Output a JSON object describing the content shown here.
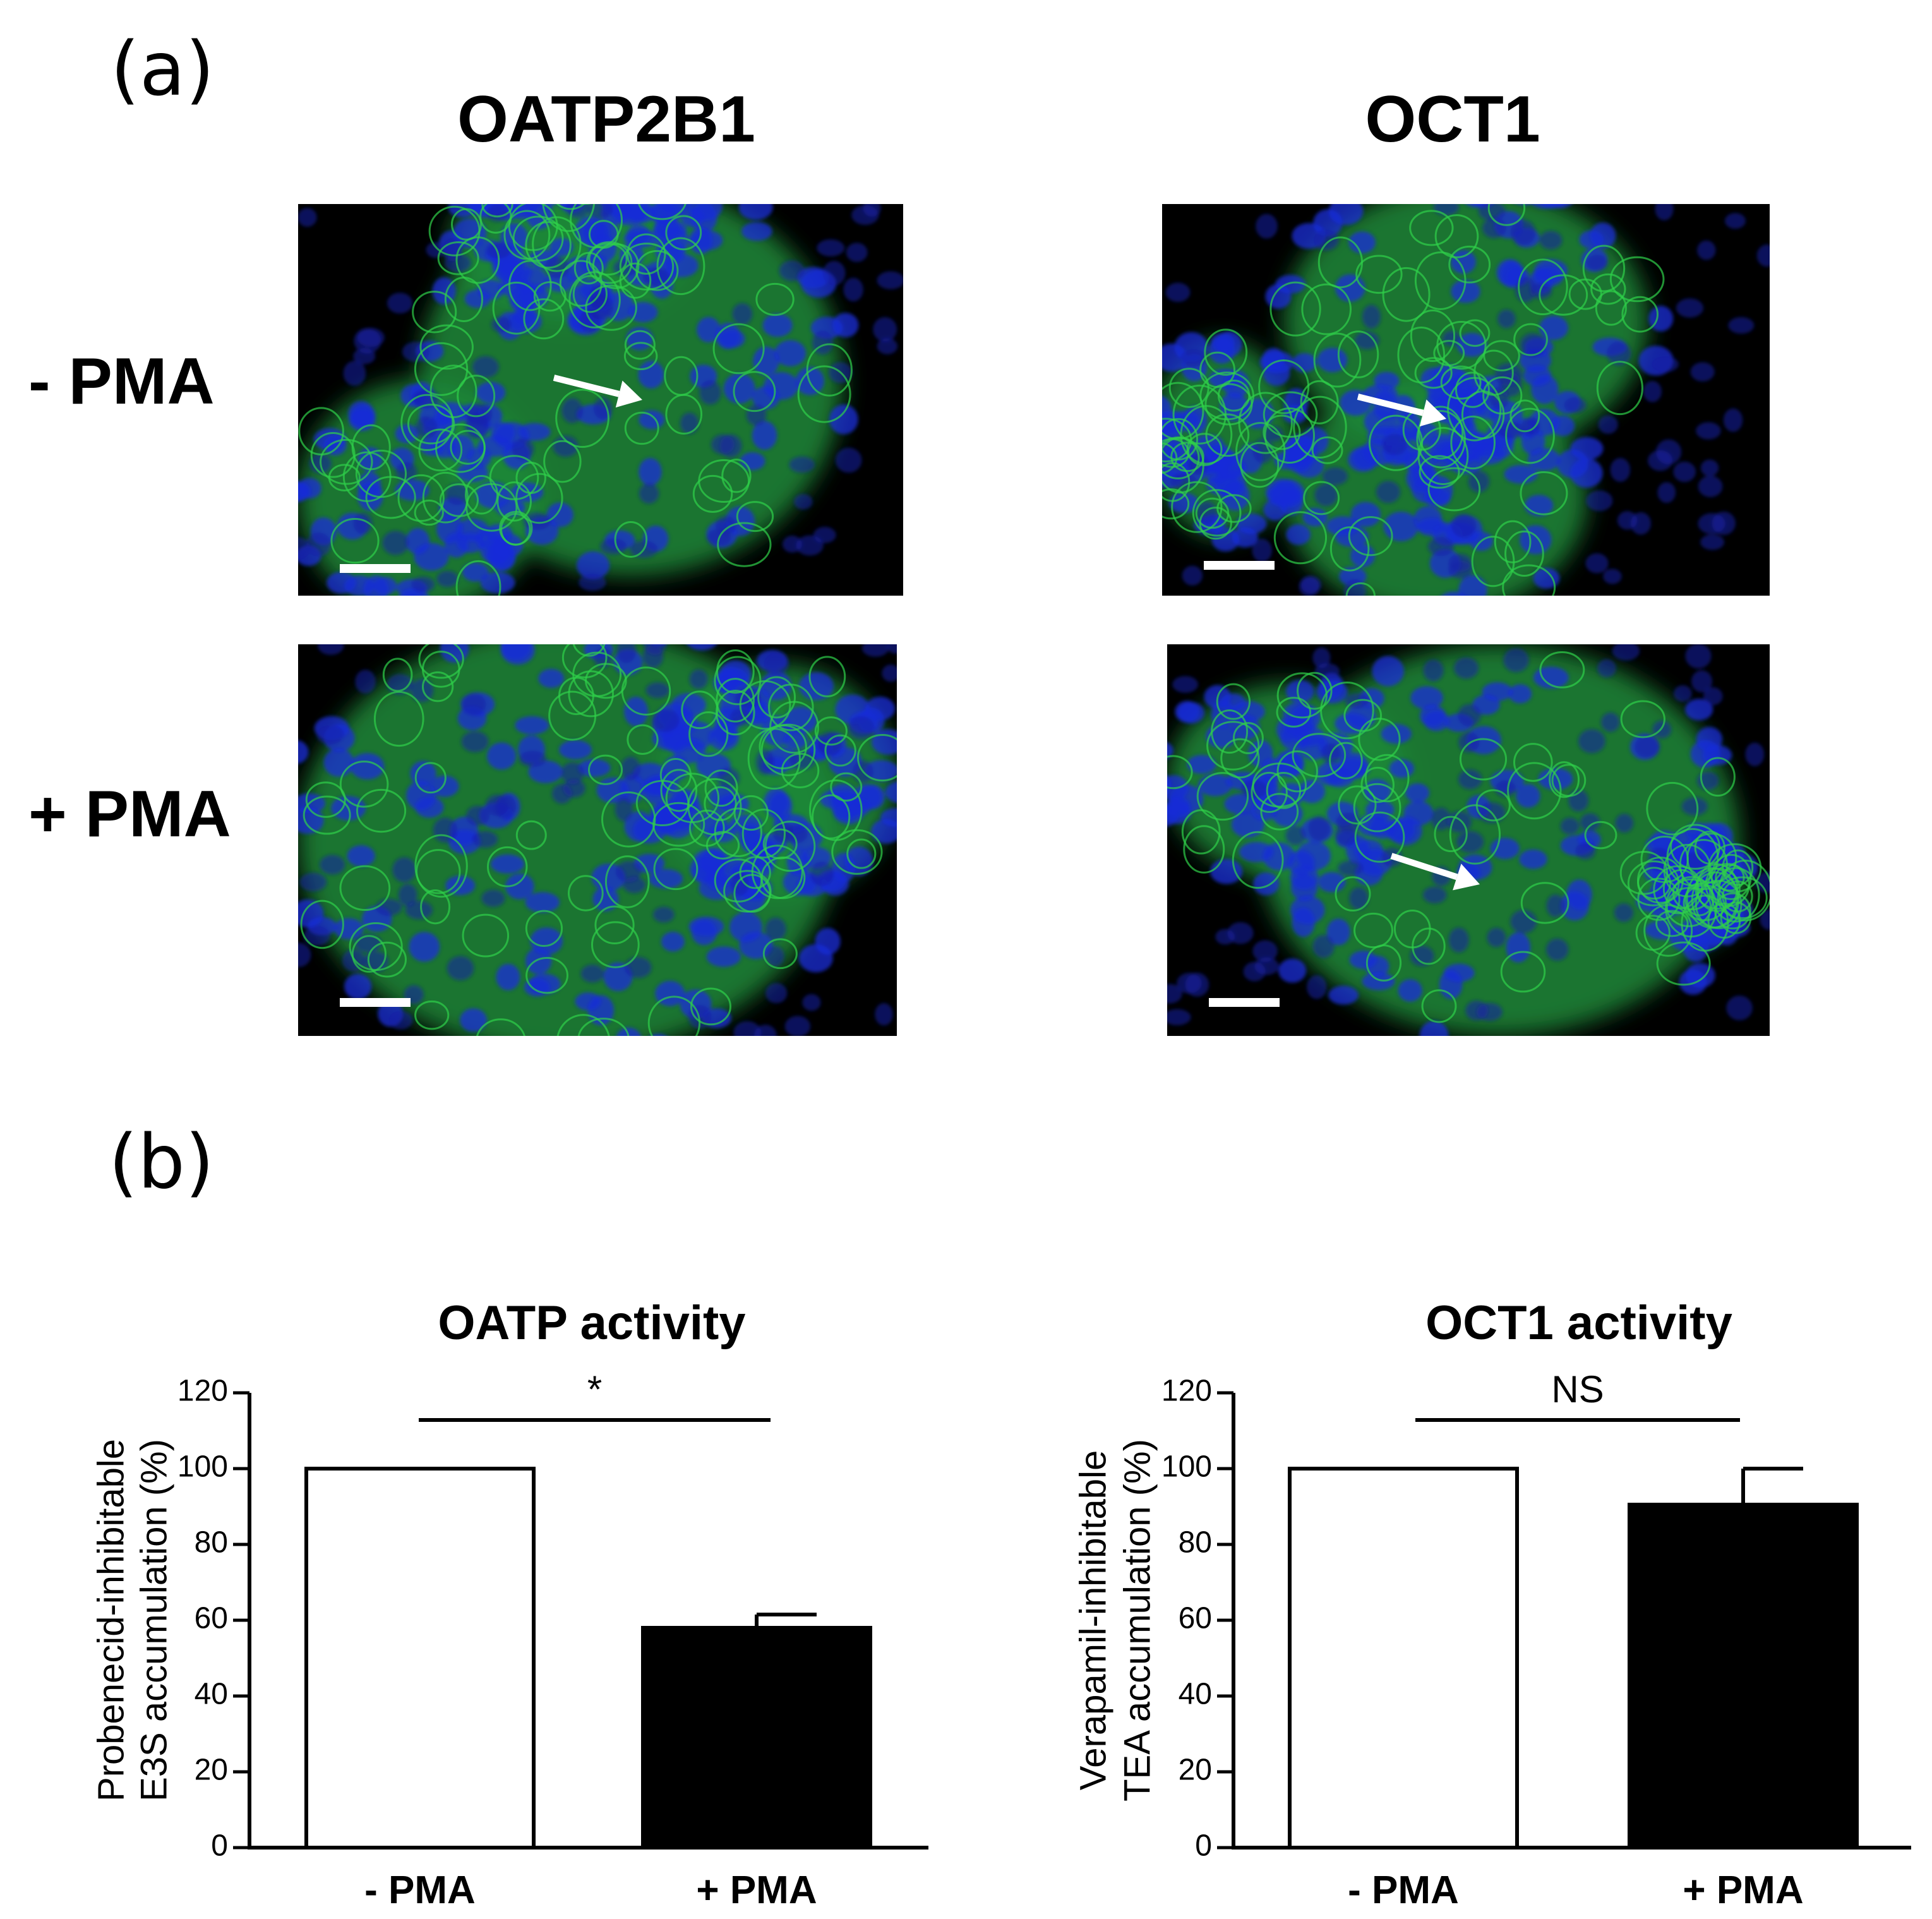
{
  "panel_a": {
    "label": "(a)",
    "columns": [
      "OATP2B1",
      "OCT1"
    ],
    "rows": [
      "- PMA",
      "+ PMA"
    ]
  },
  "panel_b": {
    "label": "(b)"
  },
  "colors": {
    "nuclei": "#1a2bd8",
    "membrane": "#2fd04a",
    "background": "#000000",
    "bar_minus": "#ffffff",
    "bar_plus": "#000000"
  },
  "chart_data": [
    {
      "type": "bar",
      "title": "OATP activity",
      "categories": [
        "- PMA",
        "+ PMA"
      ],
      "values": [
        100,
        58
      ],
      "errors": [
        0,
        3.5
      ],
      "ylabel": "Probenecid-inhibitable E3S accumulation (%)",
      "ylabel_lines": [
        "Probenecid-inhibitable",
        "E3S accumulation (%)"
      ],
      "ylim": [
        0,
        120
      ],
      "yticks": [
        0,
        20,
        40,
        60,
        80,
        100,
        120
      ],
      "significance": "*",
      "grid": false
    },
    {
      "type": "bar",
      "title": "OCT1 activity",
      "categories": [
        "- PMA",
        "+ PMA"
      ],
      "values": [
        100,
        90.5
      ],
      "errors": [
        0,
        9.5
      ],
      "ylabel": "Verapamil-inhibitable TEA accumulation (%)",
      "ylabel_lines": [
        "Verapamil-inhibitable",
        "TEA accumulation (%)"
      ],
      "ylim": [
        0,
        120
      ],
      "yticks": [
        0,
        20,
        40,
        60,
        80,
        100,
        120
      ],
      "significance": "NS",
      "grid": false
    }
  ]
}
